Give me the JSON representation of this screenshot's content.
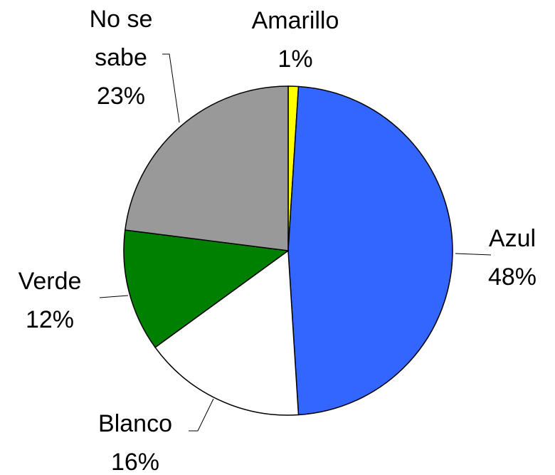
{
  "chart_data": {
    "type": "pie",
    "categories": [
      "Amarillo",
      "Azul",
      "Blanco",
      "Verde",
      "No se sabe"
    ],
    "values": [
      1,
      48,
      16,
      12,
      23
    ],
    "value_labels": [
      "1%",
      "48%",
      "16%",
      "12%",
      "23%"
    ],
    "colors": [
      "#ffff00",
      "#3366ff",
      "#ffffff",
      "#008000",
      "#999999"
    ]
  }
}
